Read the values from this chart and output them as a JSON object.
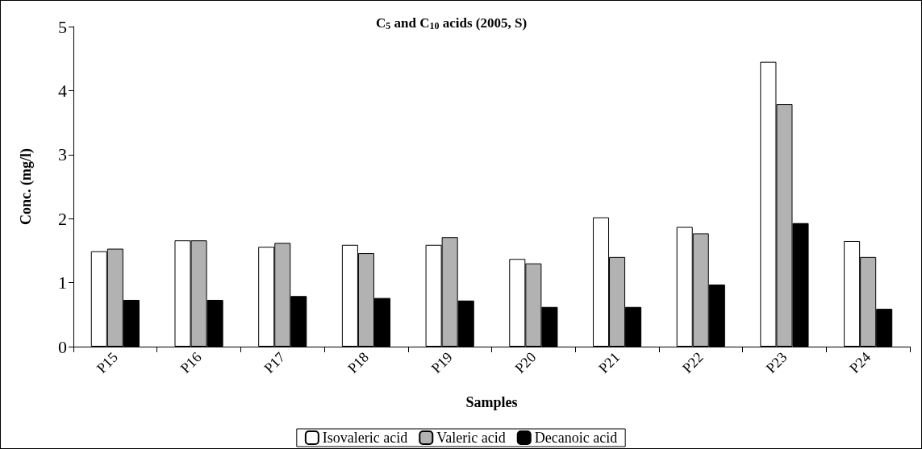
{
  "chart_data": {
    "type": "bar",
    "title": "C$_{5}$ and C$_{10}$ acids (2005, S)",
    "xlabel": "Samples",
    "ylabel": "Conc. (mg/l)",
    "categories": [
      "P15",
      "P16",
      "P17",
      "P18",
      "P19",
      "P20",
      "P21",
      "P22",
      "P23",
      "P24"
    ],
    "series": [
      {
        "name": "Isovaleric acid",
        "color": "#ffffff",
        "values": [
          1.49,
          1.66,
          1.56,
          1.59,
          1.59,
          1.37,
          2.02,
          1.87,
          4.45,
          1.65
        ]
      },
      {
        "name": "Valeric acid",
        "color": "#b2b2b2",
        "values": [
          1.53,
          1.66,
          1.62,
          1.46,
          1.71,
          1.3,
          1.4,
          1.77,
          3.79,
          1.4
        ]
      },
      {
        "name": "Decanoic acid",
        "color": "#000000",
        "values": [
          0.73,
          0.73,
          0.79,
          0.76,
          0.72,
          0.62,
          0.62,
          0.97,
          1.93,
          0.59
        ]
      }
    ],
    "ylim": [
      0,
      5
    ],
    "yticks": [
      0,
      1,
      2,
      3,
      4,
      5
    ],
    "grid": false,
    "legend": "bottom"
  }
}
